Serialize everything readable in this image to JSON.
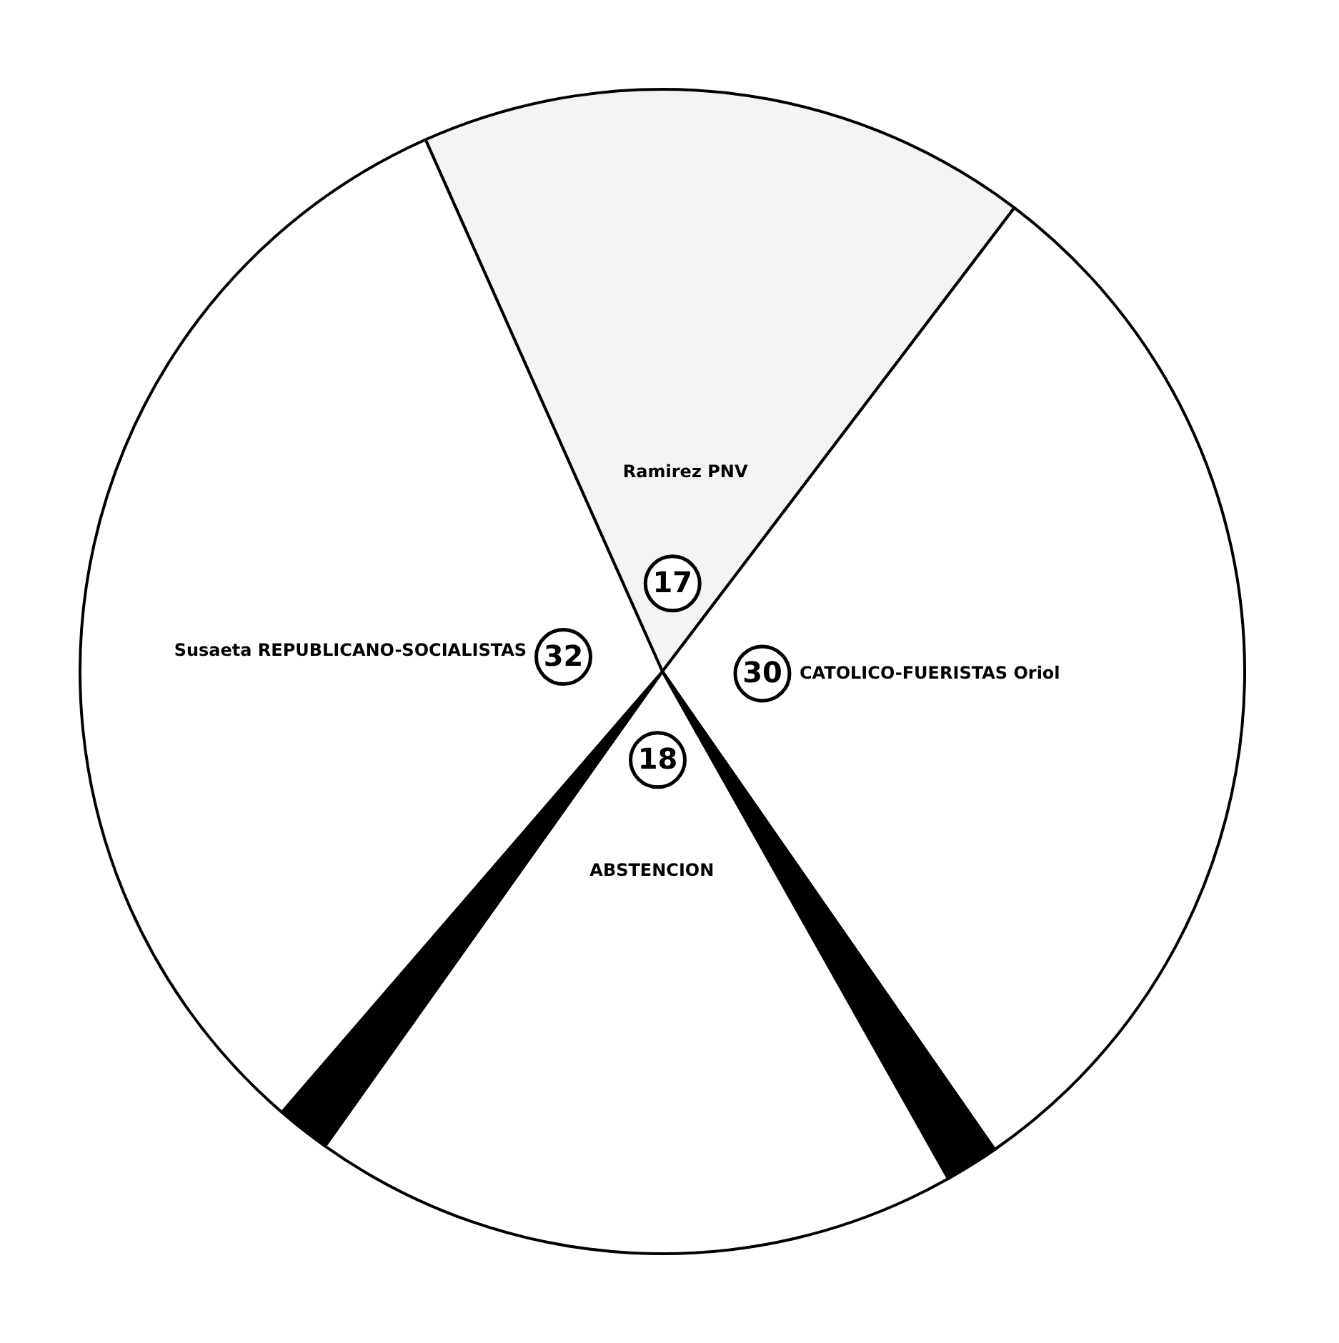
{
  "chart_data": {
    "type": "pie",
    "categories": [
      "Ramirez PNV",
      "CATOLICO-FUERISTAS Oriol",
      null,
      "ABSTENCION",
      null,
      "Susaeta REPUBLICANO-SOCIALISTAS"
    ],
    "values": [
      17,
      30,
      1.5,
      18,
      1.5,
      32
    ],
    "colors": [
      "#f4f4f4",
      "#ffffff",
      "#000000",
      "#ffffff",
      "#000000",
      "#ffffff"
    ],
    "value_labels": [
      "17",
      "30",
      null,
      "18",
      null,
      "32"
    ],
    "legend": false
  }
}
